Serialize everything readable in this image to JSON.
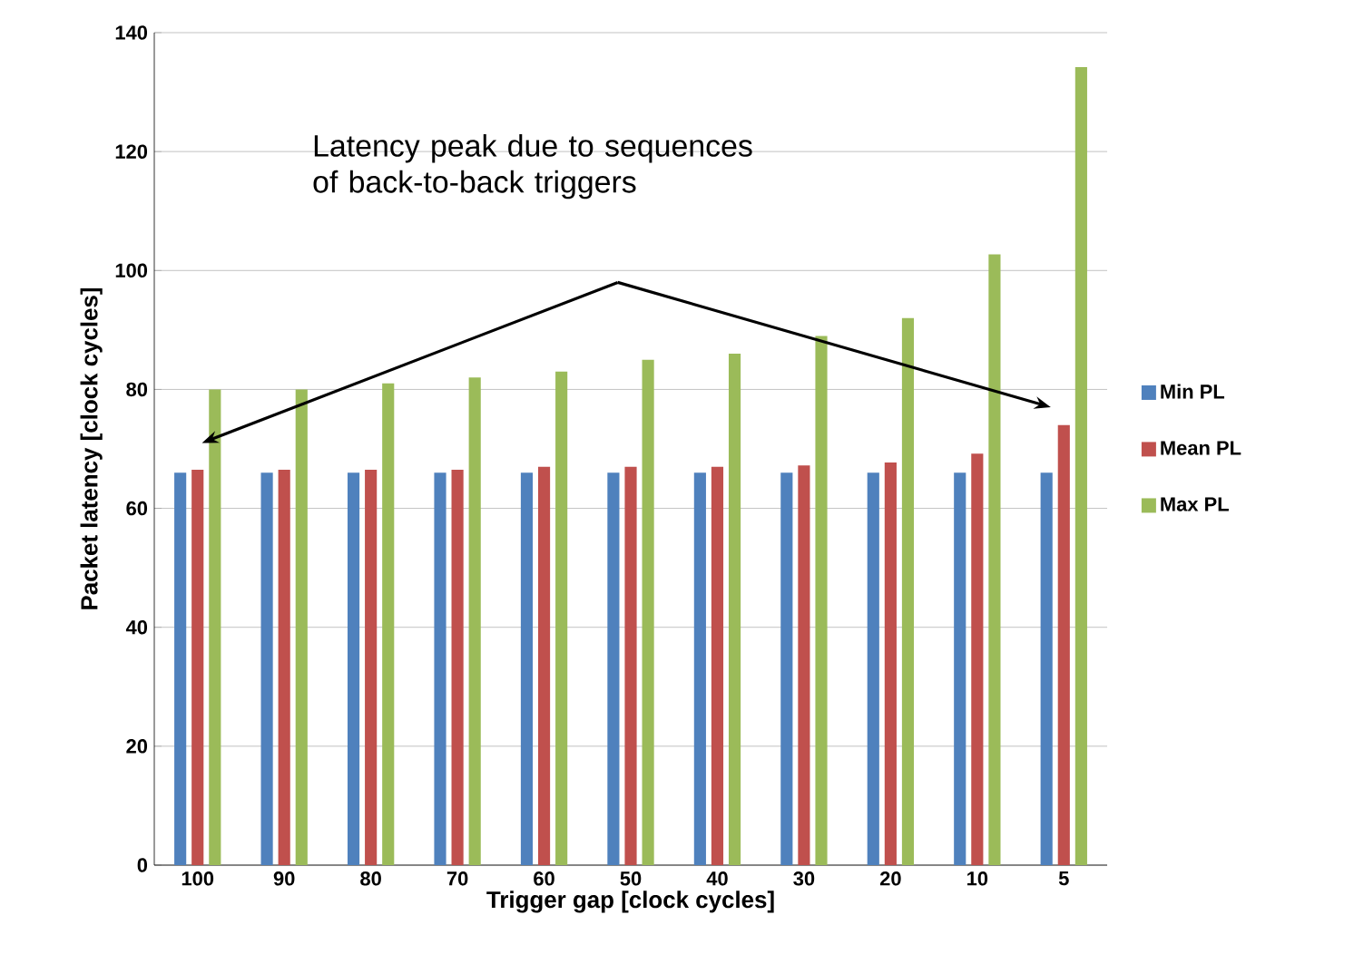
{
  "chart_data": {
    "type": "bar",
    "xlabel": "Trigger gap [clock cycles]",
    "ylabel": "Packet latency [clock cycles]",
    "categories": [
      "100",
      "90",
      "80",
      "70",
      "60",
      "50",
      "40",
      "30",
      "20",
      "10",
      "5"
    ],
    "series": [
      {
        "name": "Min PL",
        "color": "#4f81bd",
        "values": [
          66,
          66,
          66,
          66,
          66,
          66,
          66,
          66,
          66,
          66,
          66
        ]
      },
      {
        "name": "Mean PL",
        "color": "#c0504d",
        "values": [
          66.5,
          66.5,
          66.5,
          66.5,
          67,
          67,
          67,
          67.2,
          67.7,
          69.2,
          74
        ]
      },
      {
        "name": "Max PL",
        "color": "#9bbb59",
        "values": [
          80,
          80,
          81,
          82,
          83,
          85,
          86,
          89,
          92,
          102.7,
          134.2
        ]
      }
    ],
    "ylim": [
      0,
      140
    ],
    "yticks": [
      0,
      20,
      40,
      60,
      80,
      100,
      120,
      140
    ],
    "grid": "y",
    "legend": "right",
    "annotations": [
      "Latency peak due to sequences of back-to-back triggers"
    ]
  }
}
